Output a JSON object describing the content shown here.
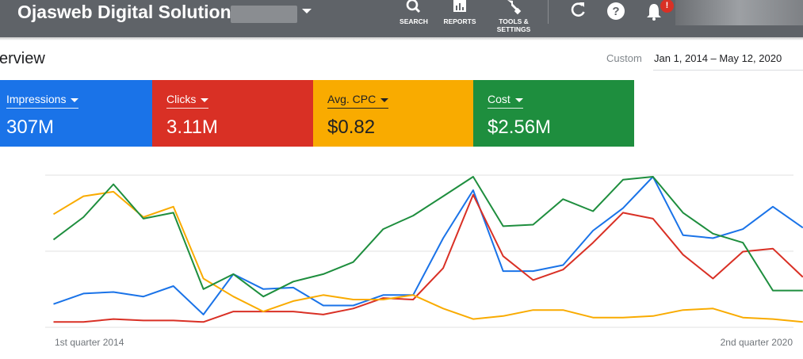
{
  "header": {
    "title": "Ojasweb Digital Solution",
    "tools": [
      {
        "label_1": "SEARCH",
        "label_2": ""
      },
      {
        "label_1": "REPORTS",
        "label_2": ""
      },
      {
        "label_1": "TOOLS &",
        "label_2": "SETTINGS"
      }
    ],
    "notification_badge": "!"
  },
  "page": {
    "title": "erview",
    "date_range_label": "Custom",
    "date_range_value": "Jan 1, 2014 – May 12, 2020"
  },
  "metrics": [
    {
      "label": "Impressions",
      "value": "307M",
      "color": "#1a73e8"
    },
    {
      "label": "Clicks",
      "value": "3.11M",
      "color": "#d93025"
    },
    {
      "label": "Avg. CPC",
      "value": "$0.82",
      "color": "#f9ab00"
    },
    {
      "label": "Cost",
      "value": "$2.56M",
      "color": "#1e8e3e"
    }
  ],
  "chart_data": {
    "type": "line",
    "x_labels": [
      "1st quarter 2014",
      "2nd quarter 2020"
    ],
    "quarters": 26,
    "grid": true,
    "ylim": [
      0,
      1
    ],
    "series": [
      {
        "name": "Impressions",
        "color": "#1a73e8",
        "values": [
          0.15,
          0.22,
          0.23,
          0.2,
          0.27,
          0.08,
          0.35,
          0.25,
          0.26,
          0.14,
          0.14,
          0.21,
          0.21,
          0.59,
          0.91,
          0.37,
          0.37,
          0.41,
          0.64,
          0.79,
          1.0,
          0.61,
          0.59,
          0.65,
          0.8,
          0.66
        ]
      },
      {
        "name": "Clicks",
        "color": "#d93025",
        "values": [
          0.03,
          0.03,
          0.05,
          0.04,
          0.04,
          0.03,
          0.1,
          0.1,
          0.1,
          0.08,
          0.12,
          0.19,
          0.18,
          0.39,
          0.88,
          0.47,
          0.31,
          0.38,
          0.56,
          0.76,
          0.72,
          0.48,
          0.32,
          0.5,
          0.52,
          0.33
        ]
      },
      {
        "name": "Avg. CPC",
        "color": "#f9ab00",
        "values": [
          0.75,
          0.87,
          0.9,
          0.73,
          0.8,
          0.32,
          0.2,
          0.1,
          0.17,
          0.21,
          0.18,
          0.18,
          0.21,
          0.12,
          0.05,
          0.07,
          0.11,
          0.11,
          0.06,
          0.06,
          0.07,
          0.11,
          0.12,
          0.06,
          0.05,
          0.03
        ]
      },
      {
        "name": "Cost",
        "color": "#1e8e3e",
        "values": [
          0.58,
          0.73,
          0.95,
          0.72,
          0.76,
          0.25,
          0.35,
          0.2,
          0.3,
          0.35,
          0.43,
          0.65,
          0.74,
          0.87,
          1.0,
          0.67,
          0.68,
          0.85,
          0.77,
          0.98,
          1.0,
          0.76,
          0.62,
          0.56,
          0.24,
          0.24
        ]
      }
    ]
  }
}
